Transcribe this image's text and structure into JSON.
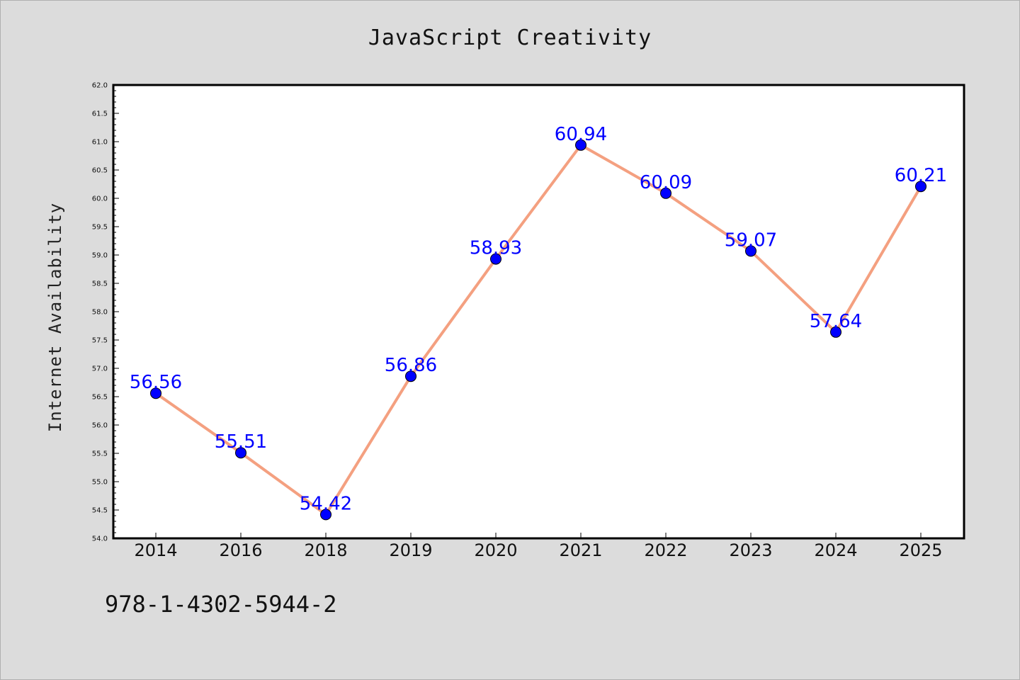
{
  "chart_data": {
    "type": "line",
    "title": "JavaScript Creativity",
    "xlabel": "",
    "ylabel": "Internet Availability",
    "categories": [
      "2014",
      "2016",
      "2018",
      "2019",
      "2020",
      "2021",
      "2022",
      "2023",
      "2024",
      "2025"
    ],
    "series": [
      {
        "values": [
          56.56,
          55.51,
          54.42,
          56.86,
          58.93,
          60.94,
          60.09,
          59.07,
          57.64,
          60.21
        ],
        "labels": [
          "56.56",
          "55.51",
          "54.42",
          "56.86",
          "58.93",
          "60.94",
          "60.09",
          "59.07",
          "57.64",
          "60.21"
        ]
      }
    ],
    "ylim": [
      54.0,
      62.0
    ],
    "yticks": [
      "54.0",
      "54.5",
      "55.0",
      "55.5",
      "56.0",
      "56.5",
      "57.0",
      "57.5",
      "58.0",
      "58.5",
      "59.0",
      "59.5",
      "60.0",
      "60.5",
      "61.0",
      "61.5",
      "62.0"
    ],
    "grid": false,
    "line_color": "#f4a080",
    "marker_color": "#0000ff",
    "label_color": "#0000ff"
  },
  "footer": {
    "isbn": "978-1-4302-5944-2"
  }
}
